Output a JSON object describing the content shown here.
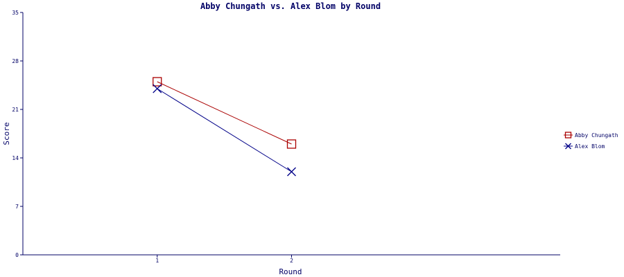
{
  "chart_data": {
    "type": "line",
    "title": "Abby Chungath vs. Alex Blom by Round",
    "xlabel": "Round",
    "ylabel": "Score",
    "categories": [
      "1",
      "2"
    ],
    "x": [
      1,
      2
    ],
    "xlim": [
      0,
      4
    ],
    "ylim": [
      0,
      35
    ],
    "yticks": [
      "0",
      "7",
      "14",
      "21",
      "28",
      "35"
    ],
    "grid": false,
    "legend_position": "right",
    "series": [
      {
        "name": "Abby Chungath",
        "values": [
          25,
          16
        ],
        "color": "#aa0000",
        "marker": "square"
      },
      {
        "name": "Alex Blom",
        "values": [
          24,
          12
        ],
        "color": "#000088",
        "marker": "x"
      }
    ],
    "axis_color": "#000066",
    "text_color": "#000066"
  }
}
